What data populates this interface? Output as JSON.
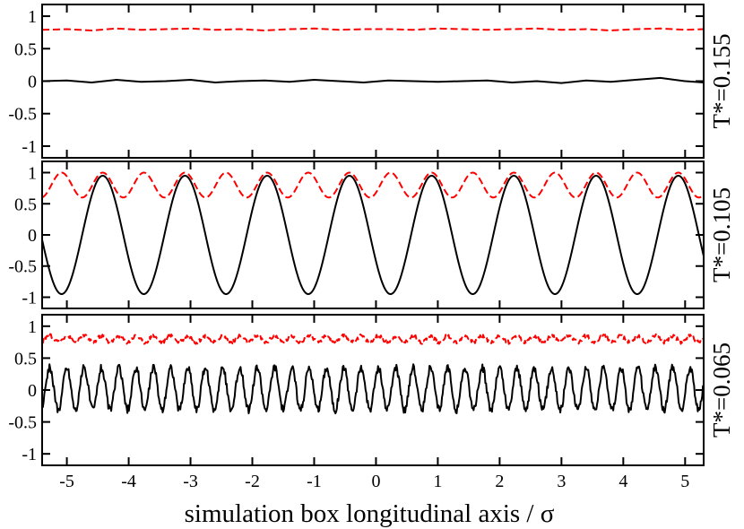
{
  "chart_data": {
    "type": "line",
    "xlabel": "simulation box longitudinal axis / σ",
    "xlim": [
      -5.4,
      5.3
    ],
    "x_ticks": [
      -5,
      -4,
      -3,
      -2,
      -1,
      0,
      1,
      2,
      3,
      4,
      5
    ],
    "x_tick_labels": [
      "-5",
      "-4",
      "-3",
      "-2",
      "-1",
      "0",
      "1",
      "2",
      "3",
      "4",
      "5"
    ],
    "ylim": [
      -1.18,
      1.18
    ],
    "y_ticks": [
      1,
      0.5,
      0,
      -0.5,
      -1
    ],
    "y_tick_labels": [
      "1",
      "0.5",
      "0",
      "-0.5",
      "-1"
    ],
    "grid": false,
    "series_colors": {
      "solid": "#000000",
      "dashed": "#ff0000"
    },
    "panels": [
      {
        "label": "T*=0.155",
        "series": [
          {
            "style": "solid",
            "color": "#000000",
            "x": [
              -5.4,
              -5.0,
              -4.6,
              -4.2,
              -3.8,
              -3.4,
              -3.0,
              -2.6,
              -2.2,
              -1.8,
              -1.4,
              -1.0,
              -0.6,
              -0.2,
              0.2,
              0.6,
              1.0,
              1.4,
              1.8,
              2.2,
              2.6,
              3.0,
              3.4,
              3.8,
              4.2,
              4.6,
              5.0,
              5.3
            ],
            "y": [
              0.0,
              0.01,
              -0.02,
              0.02,
              -0.01,
              0.0,
              0.02,
              -0.02,
              0.0,
              0.01,
              -0.01,
              0.02,
              0.0,
              -0.02,
              0.01,
              0.0,
              -0.01,
              0.0,
              0.01,
              -0.02,
              0.0,
              -0.03,
              0.01,
              -0.01,
              0.02,
              0.05,
              0.0,
              -0.02
            ]
          },
          {
            "style": "dashed",
            "color": "#ff0000",
            "x": [
              -5.4,
              -5.0,
              -4.6,
              -4.2,
              -3.8,
              -3.4,
              -3.0,
              -2.6,
              -2.2,
              -1.8,
              -1.4,
              -1.0,
              -0.6,
              -0.2,
              0.2,
              0.6,
              1.0,
              1.4,
              1.8,
              2.2,
              2.6,
              3.0,
              3.4,
              3.8,
              4.2,
              4.6,
              5.0,
              5.3
            ],
            "y": [
              0.79,
              0.8,
              0.78,
              0.81,
              0.79,
              0.8,
              0.81,
              0.79,
              0.8,
              0.78,
              0.8,
              0.81,
              0.79,
              0.8,
              0.8,
              0.79,
              0.81,
              0.8,
              0.79,
              0.8,
              0.81,
              0.79,
              0.8,
              0.78,
              0.8,
              0.81,
              0.79,
              0.8
            ]
          }
        ]
      },
      {
        "label": "T*=0.105",
        "series": [
          {
            "style": "solid",
            "color": "#000000",
            "wave": {
              "amplitude": 0.95,
              "period": 1.33,
              "phase_x": -4.42,
              "sharpness": 1.0,
              "offset": 0
            }
          },
          {
            "style": "dashed",
            "color": "#ff0000",
            "wave": {
              "amplitude": 0.2,
              "period": 0.665,
              "phase_x": -4.42,
              "offset": 0.8
            }
          }
        ]
      },
      {
        "label": "T*=0.065",
        "series": [
          {
            "style": "solid",
            "color": "#000000",
            "wave": {
              "amplitude": 0.33,
              "period": 0.28,
              "phase_x": -4.44,
              "offset": 0.02,
              "jitter": 0.06
            }
          },
          {
            "style": "dashed",
            "color": "#ff0000",
            "wave": {
              "amplitude": 0.05,
              "period": 0.28,
              "phase_x": -4.44,
              "offset": 0.8,
              "jitter": 0.03
            }
          }
        ]
      }
    ]
  }
}
